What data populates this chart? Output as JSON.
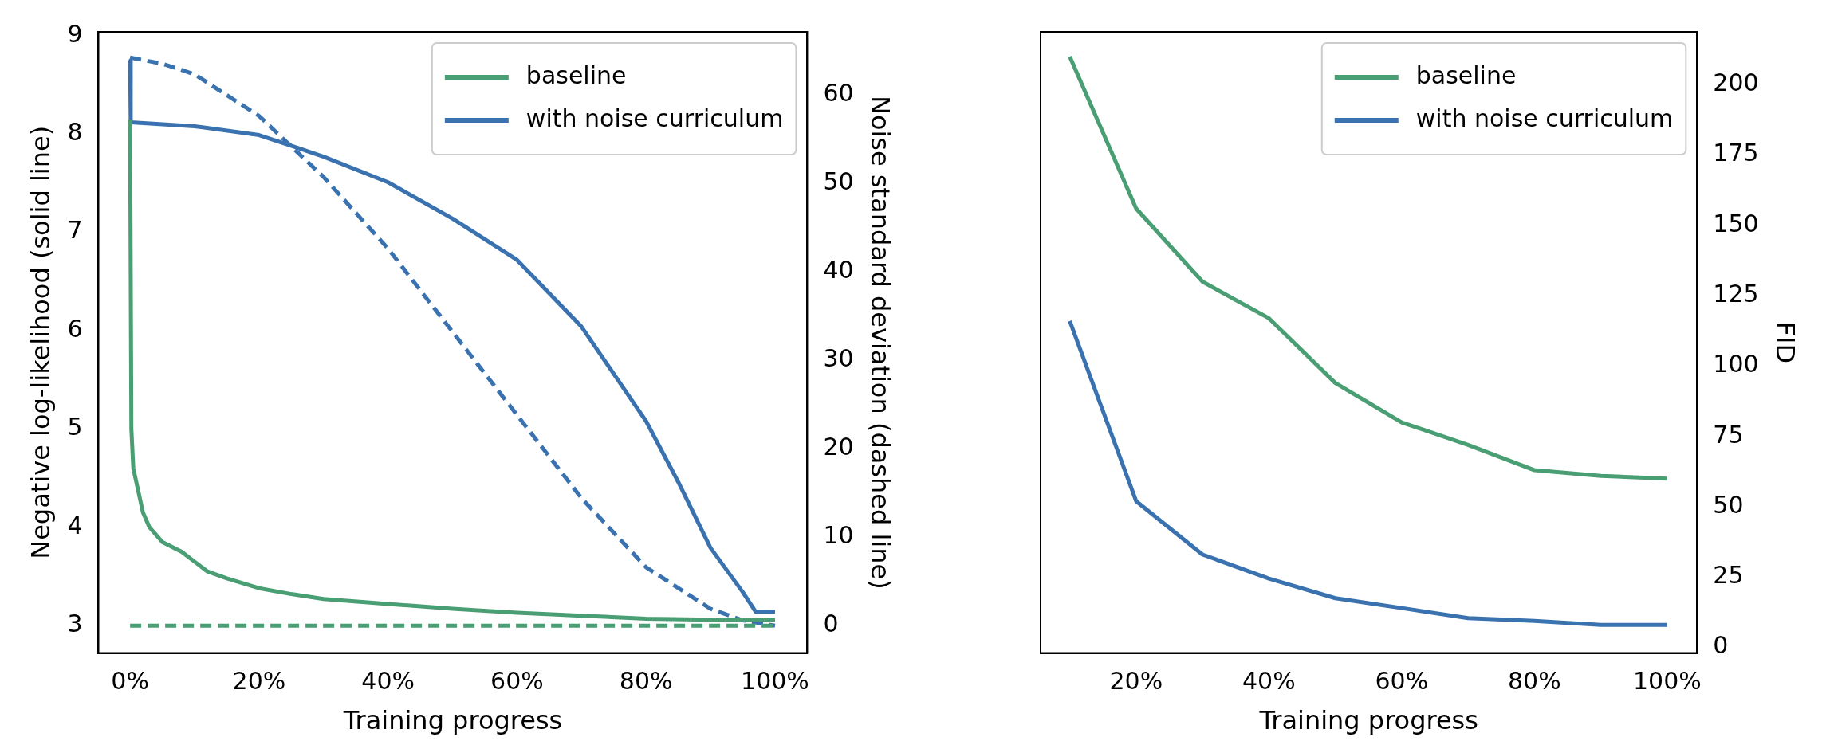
{
  "chart_data": [
    {
      "type": "line",
      "xlabel": "Training progress",
      "ylabel": "Negative log-likelihood (solid line)",
      "y2label": "Noise standard deviation (dashed line)",
      "xlim": [
        -4.9,
        105
      ],
      "xticks": [
        {
          "value": 0,
          "label": "0%"
        },
        {
          "value": 20,
          "label": "20%"
        },
        {
          "value": 40,
          "label": "40%"
        },
        {
          "value": 60,
          "label": "60%"
        },
        {
          "value": 80,
          "label": "80%"
        },
        {
          "value": 100,
          "label": "100%"
        }
      ],
      "ylim": [
        2.72,
        9.04
      ],
      "yticks": [
        3,
        4,
        5,
        6,
        7,
        8,
        9
      ],
      "y2lim": [
        -3.1,
        67.1
      ],
      "y2ticks": [
        0,
        10,
        20,
        30,
        40,
        50,
        60
      ],
      "legend": "top right",
      "series": [
        {
          "name": "baseline",
          "color": "#4a9e73",
          "x": [
            0,
            0.2,
            0.5,
            1,
            2,
            3,
            5,
            8,
            10,
            12,
            15,
            20,
            25,
            30,
            40,
            50,
            60,
            70,
            80,
            90,
            100
          ],
          "values": [
            8.15,
            5.0,
            4.6,
            4.45,
            4.15,
            4.0,
            3.85,
            3.75,
            3.65,
            3.55,
            3.48,
            3.38,
            3.32,
            3.27,
            3.22,
            3.17,
            3.13,
            3.1,
            3.07,
            3.06,
            3.06
          ]
        },
        {
          "name": "with noise curriculum",
          "color": "#3a72b0",
          "x": [
            0,
            0.1,
            10,
            20,
            26,
            30,
            40,
            50,
            60,
            70,
            80,
            85,
            90,
            95,
            97,
            100
          ],
          "values": [
            8.75,
            8.12,
            8.08,
            7.99,
            7.86,
            7.77,
            7.51,
            7.14,
            6.72,
            6.04,
            5.08,
            4.46,
            3.79,
            3.34,
            3.14,
            3.14
          ]
        },
        {
          "color": "#4a9e73",
          "axis": "y2",
          "line_style": "dashed",
          "x": [
            0,
            100
          ],
          "values": [
            0,
            0
          ]
        },
        {
          "color": "#3a72b0",
          "axis": "y2",
          "line_style": "dashed",
          "x": [
            0,
            5,
            10,
            20,
            30,
            40,
            50,
            60,
            70,
            80,
            90,
            95,
            100
          ],
          "values": [
            64.2,
            63.5,
            62.3,
            57.6,
            50.7,
            42.6,
            33.2,
            23.8,
            14.4,
            6.6,
            1.9,
            0.6,
            0
          ]
        }
      ]
    },
    {
      "type": "line",
      "xlabel": "Training progress",
      "y2label": "FID",
      "xlim": [
        5.6,
        104.5
      ],
      "xticks": [
        {
          "value": 20,
          "label": "20%"
        },
        {
          "value": 40,
          "label": "40%"
        },
        {
          "value": 60,
          "label": "60%"
        },
        {
          "value": 80,
          "label": "80%"
        },
        {
          "value": 100,
          "label": "100%"
        }
      ],
      "y2lim": [
        -2,
        218.8
      ],
      "y2ticks": [
        0,
        25,
        50,
        75,
        100,
        125,
        150,
        175,
        200
      ],
      "legend": "top right",
      "x": [
        10,
        20,
        30,
        40,
        50,
        60,
        70,
        80,
        90,
        100
      ],
      "series": [
        {
          "name": "baseline",
          "color": "#4a9e73",
          "axis": "y2",
          "values": [
            210,
            156,
            130,
            117,
            94,
            80,
            72,
            63,
            61,
            60
          ]
        },
        {
          "name": "with noise curriculum",
          "color": "#3a72b0",
          "axis": "y2",
          "values": [
            116,
            52,
            33,
            24.5,
            17.5,
            14,
            10.4,
            9.4,
            8,
            8
          ]
        }
      ]
    }
  ]
}
